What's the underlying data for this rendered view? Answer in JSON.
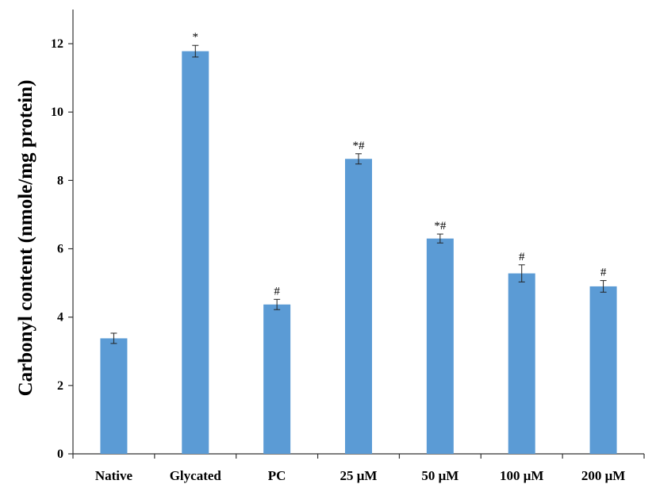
{
  "chart_data": {
    "type": "bar",
    "ylabel": "Carbonyl content (nmole/mg protein)",
    "xlabel": "",
    "ylim": [
      0,
      13
    ],
    "yticks": [
      0,
      2,
      4,
      6,
      8,
      10,
      12
    ],
    "categories": [
      "Native",
      "Glycated",
      "PC",
      "25 μM",
      "50 μM",
      "100 μM",
      "200 μM"
    ],
    "values": [
      3.38,
      11.78,
      4.37,
      8.63,
      6.3,
      5.28,
      4.9
    ],
    "errors": [
      0.15,
      0.17,
      0.15,
      0.15,
      0.13,
      0.25,
      0.17
    ],
    "annotations": [
      "",
      "*",
      "#",
      "*#",
      "*#",
      "#",
      "#"
    ],
    "bar_color": "#5b9bd5",
    "grid": false,
    "legend": "none"
  }
}
